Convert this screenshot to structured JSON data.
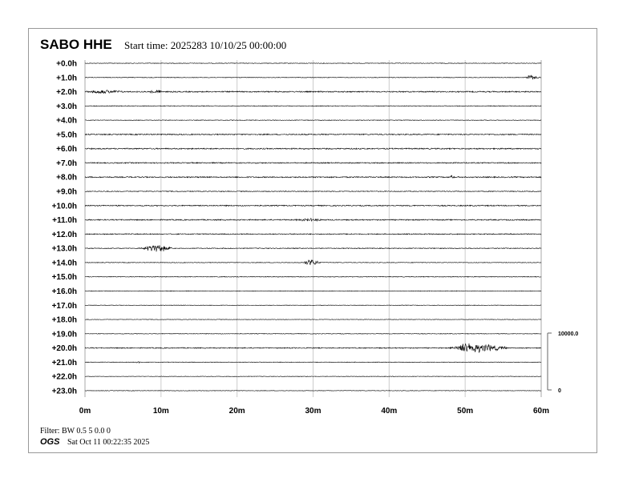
{
  "header": {
    "station": "SABO HHE",
    "start_time": "Start time: 2025283 10/10/25 00:00:00"
  },
  "footer": {
    "filter": "Filter: BW 0.5 5 0.0 0",
    "org": "OGS",
    "generated": "Sat Oct 11 00:22:35 2025"
  },
  "chart_data": {
    "type": "line",
    "title": "SABO HHE",
    "row_labels": [
      "+0.0h",
      "+1.0h",
      "+2.0h",
      "+3.0h",
      "+4.0h",
      "+5.0h",
      "+6.0h",
      "+7.0h",
      "+8.0h",
      "+9.0h",
      "+10.0h",
      "+11.0h",
      "+12.0h",
      "+13.0h",
      "+14.0h",
      "+15.0h",
      "+16.0h",
      "+17.0h",
      "+18.0h",
      "+19.0h",
      "+20.0h",
      "+21.0h",
      "+22.0h",
      "+23.0h"
    ],
    "x_ticks": [
      "0m",
      "10m",
      "20m",
      "30m",
      "40m",
      "50m",
      "60m"
    ],
    "xlim": [
      0,
      60
    ],
    "grid": true,
    "scale_bar": {
      "top_label": "10000.0",
      "bottom_label": "0"
    },
    "noise_level": [
      0.6,
      0.6,
      1.2,
      0.7,
      0.6,
      1.1,
      1.2,
      1.1,
      1.2,
      0.8,
      1.1,
      1.1,
      1.0,
      0.8,
      0.6,
      0.7,
      0.6,
      0.5,
      0.5,
      0.6,
      1.0,
      0.6,
      0.5,
      0.5
    ],
    "events": [
      {
        "hour": 1,
        "start_min": 57.8,
        "end_min": 60,
        "peak_min": 58.5,
        "amplitude": 3.5
      },
      {
        "hour": 2,
        "start_min": 0,
        "end_min": 6,
        "peak_min": 2,
        "amplitude": 3.2
      },
      {
        "hour": 2,
        "start_min": 8,
        "end_min": 10.5,
        "peak_min": 9.3,
        "amplitude": 3.0
      },
      {
        "hour": 8,
        "start_min": 47.8,
        "end_min": 48.6,
        "peak_min": 48.2,
        "amplitude": 4.0
      },
      {
        "hour": 11,
        "start_min": 26,
        "end_min": 33,
        "peak_min": 29.5,
        "amplitude": 2.2
      },
      {
        "hour": 13,
        "start_min": 7,
        "end_min": 11.5,
        "peak_min": 9.2,
        "amplitude": 6.5
      },
      {
        "hour": 14,
        "start_min": 28.5,
        "end_min": 31,
        "peak_min": 29.8,
        "amplitude": 6.0
      },
      {
        "hour": 20,
        "start_min": 48,
        "end_min": 55.5,
        "peak_min": 50.5,
        "amplitude": 8.5
      },
      {
        "hour": 21,
        "start_min": 6.6,
        "end_min": 7.4,
        "peak_min": 7,
        "amplitude": 2.0
      }
    ]
  }
}
